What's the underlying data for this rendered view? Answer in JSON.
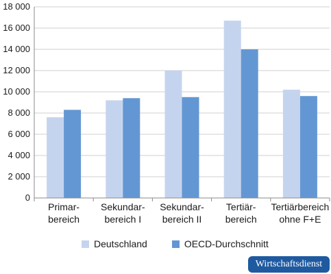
{
  "chart_data": {
    "type": "bar",
    "categories": [
      [
        "Primar-",
        "bereich"
      ],
      [
        "Sekundar-",
        "bereich I"
      ],
      [
        "Sekundar-",
        "bereich II"
      ],
      [
        "Tertiär-",
        "bereich"
      ],
      [
        "Tertiärbereich",
        "ohne F+E"
      ]
    ],
    "series": [
      {
        "name": "Deutschland",
        "color": "#c5d4ee",
        "values": [
          7600,
          9200,
          12000,
          16700,
          10200
        ]
      },
      {
        "name": "OECD-Durchschnitt",
        "color": "#6397d3",
        "values": [
          8300,
          9400,
          9500,
          14000,
          9600
        ]
      }
    ],
    "ylim": [
      0,
      18000
    ],
    "yticks": [
      0,
      2000,
      4000,
      6000,
      8000,
      10000,
      12000,
      14000,
      16000,
      18000
    ],
    "ytick_labels": [
      "0",
      "2 000",
      "4 000",
      "6 000",
      "8 000",
      "10 000",
      "12 000",
      "14 000",
      "16 000",
      "18 000"
    ],
    "grid": true,
    "legend": "bottom"
  },
  "brand": {
    "label": "Wirtschaftsdienst"
  }
}
